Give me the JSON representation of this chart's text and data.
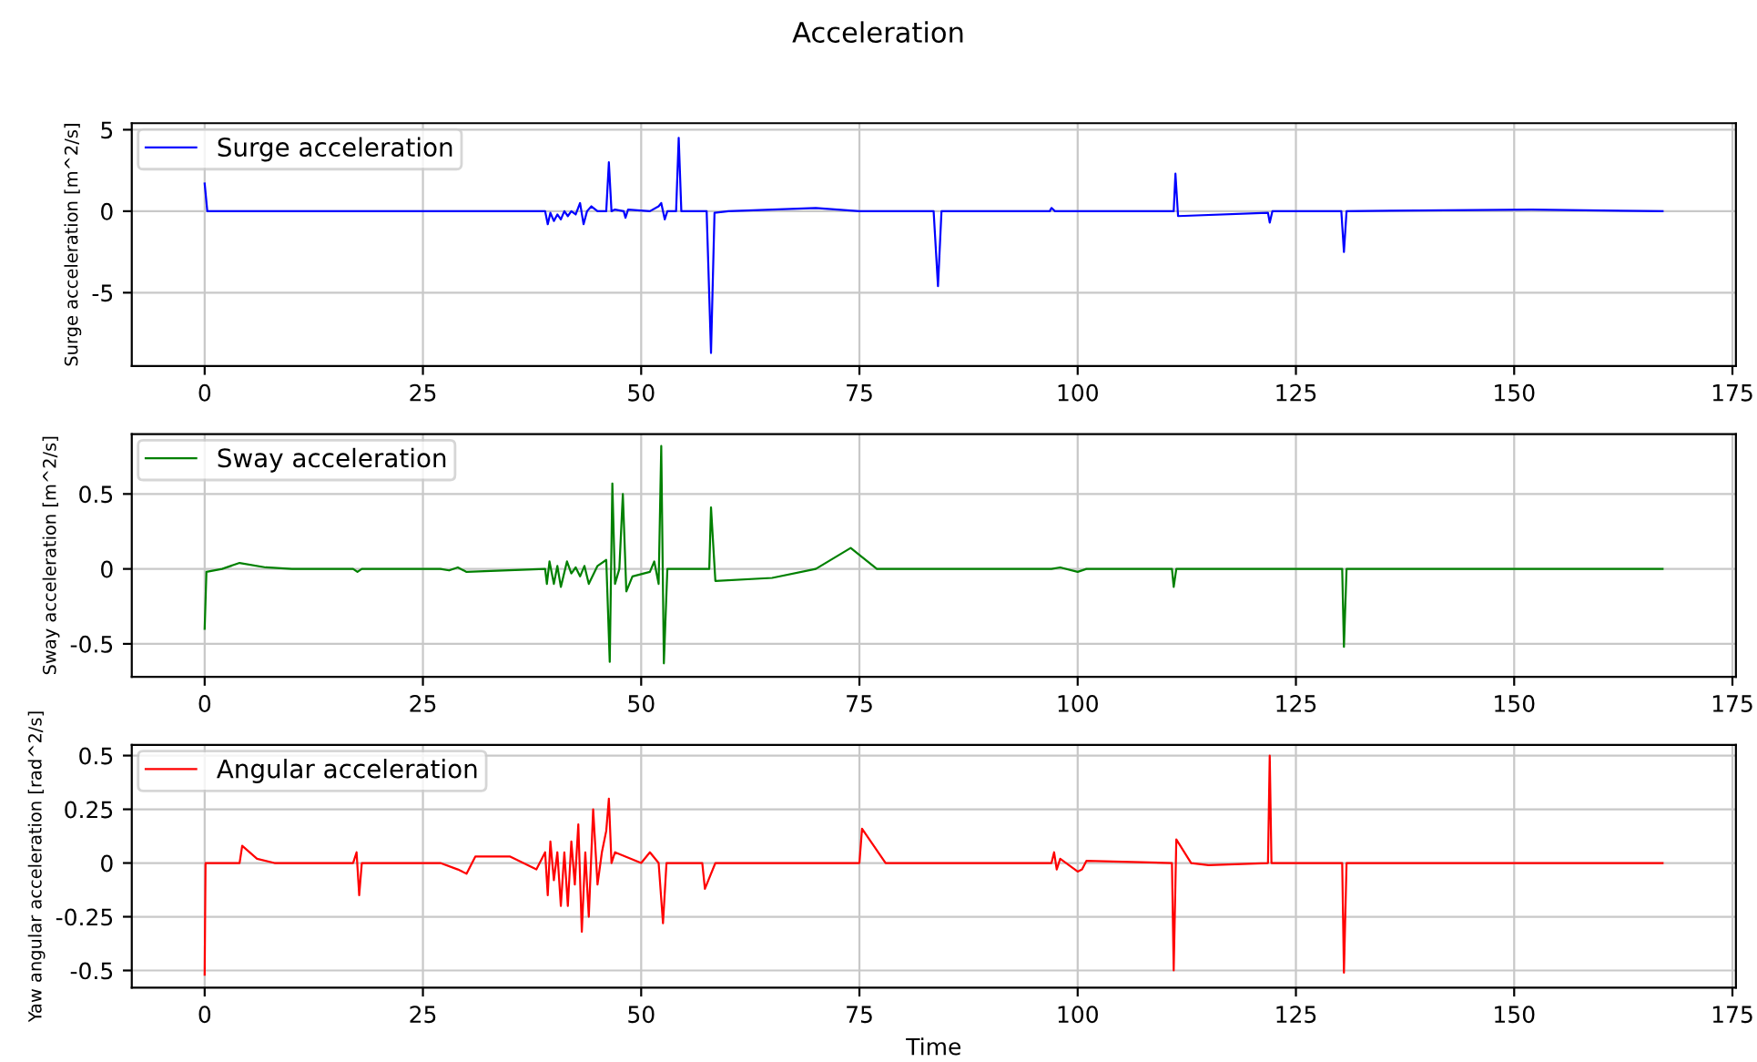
{
  "chart_data": [
    {
      "type": "line",
      "title": "Acceleration",
      "ylabel": "Surge acceleration [m^2/s]",
      "xlim": [
        -8.35,
        175.4
      ],
      "xticks": [
        0,
        25,
        50,
        75,
        100,
        125,
        150,
        175
      ],
      "ylim": [
        -9.5,
        5.4
      ],
      "yticks": [
        -5,
        0,
        5
      ],
      "grid": true,
      "legend": "top left",
      "series": [
        {
          "name": "Surge acceleration",
          "color": "#0000ff",
          "x": [
            0,
            0.3,
            39,
            39.3,
            39.6,
            40,
            40.4,
            40.8,
            41.2,
            41.6,
            42,
            42.5,
            43,
            43.4,
            43.8,
            44.3,
            45,
            46,
            46.3,
            46.6,
            47,
            48,
            48.2,
            48.5,
            51,
            52,
            52.3,
            52.7,
            53,
            54,
            54.3,
            54.6,
            57.5,
            58,
            58.4,
            60,
            65,
            70,
            75,
            83.5,
            84,
            84.4,
            96.8,
            97,
            97.4,
            111,
            111.2,
            111.5,
            121.8,
            122,
            122.3,
            130.2,
            130.5,
            130.8,
            152,
            167
          ],
          "values": [
            1.7,
            0,
            0,
            -0.8,
            -0.1,
            -0.6,
            -0.2,
            -0.5,
            0,
            -0.3,
            0,
            -0.2,
            0.5,
            -0.8,
            0,
            0.3,
            0,
            0,
            3.0,
            0,
            0.1,
            0,
            -0.4,
            0.1,
            0,
            0.3,
            0.5,
            -0.5,
            0,
            0,
            4.5,
            0,
            0,
            -8.7,
            -0.1,
            0,
            0.1,
            0.2,
            0,
            0,
            -4.6,
            0,
            0,
            0.2,
            0,
            0,
            2.3,
            -0.3,
            -0.1,
            -0.7,
            0,
            0,
            -2.5,
            0,
            0.1,
            0
          ]
        }
      ]
    },
    {
      "type": "line",
      "ylabel": "Sway acceleration [m^2/s]",
      "xlim": [
        -8.35,
        175.4
      ],
      "xticks": [
        0,
        25,
        50,
        75,
        100,
        125,
        150,
        175
      ],
      "ylim": [
        -0.72,
        0.9
      ],
      "yticks": [
        -0.5,
        0,
        0.5
      ],
      "grid": true,
      "legend": "top left",
      "series": [
        {
          "name": "Sway acceleration",
          "color": "#008000",
          "x": [
            0,
            0.2,
            2,
            4,
            7,
            10,
            17,
            17.5,
            18,
            27,
            28,
            29,
            30,
            39,
            39.2,
            39.5,
            40,
            40.4,
            40.8,
            41.5,
            42,
            42.5,
            43,
            43.5,
            44,
            45,
            46,
            46.4,
            46.7,
            47,
            47.5,
            47.9,
            48.3,
            49,
            51,
            51.5,
            52,
            52.3,
            52.6,
            53,
            57.8,
            58,
            58.5,
            65,
            70,
            74,
            77,
            80,
            97,
            98,
            100,
            101,
            110.8,
            111,
            111.3,
            130.3,
            130.5,
            130.8,
            167
          ],
          "values": [
            -0.4,
            -0.02,
            0,
            0.04,
            0.01,
            0,
            0,
            -0.02,
            0,
            0,
            -0.01,
            0.01,
            -0.02,
            0,
            -0.1,
            0.05,
            -0.1,
            0.02,
            -0.12,
            0.05,
            -0.03,
            0.01,
            -0.05,
            0.02,
            -0.1,
            0.02,
            0.06,
            -0.62,
            0.57,
            -0.1,
            0,
            0.5,
            -0.15,
            -0.05,
            -0.02,
            0.05,
            -0.1,
            0.82,
            -0.63,
            0,
            0,
            0.41,
            -0.08,
            -0.06,
            0,
            0.14,
            0,
            0,
            0,
            0.01,
            -0.02,
            0,
            0,
            -0.12,
            0,
            0,
            -0.52,
            0,
            0
          ]
        }
      ]
    },
    {
      "type": "line",
      "ylabel": "Yaw angular acceleration [rad^2/s]",
      "xlabel": "Time",
      "xlim": [
        -8.35,
        175.4
      ],
      "xticks": [
        0,
        25,
        50,
        75,
        100,
        125,
        150,
        175
      ],
      "ylim": [
        -0.58,
        0.55
      ],
      "yticks": [
        -0.5,
        -0.25,
        0,
        0.25,
        0.5
      ],
      "grid": true,
      "legend": "top left",
      "series": [
        {
          "name": "Angular acceleration",
          "color": "#ff0000",
          "x": [
            0,
            0.1,
            4,
            4.3,
            6,
            8,
            17,
            17.4,
            17.7,
            18,
            27,
            29,
            30,
            31,
            35,
            38,
            39,
            39.3,
            39.6,
            40,
            40.4,
            40.8,
            41.2,
            41.6,
            42,
            42.4,
            42.8,
            43.2,
            43.6,
            44,
            44.5,
            45,
            45.5,
            46,
            46.3,
            46.6,
            47,
            50,
            51,
            52,
            52.5,
            52.9,
            57,
            57.3,
            58.5,
            75,
            75.3,
            78,
            84,
            97,
            97.3,
            97.6,
            98,
            100,
            100.5,
            101,
            110.8,
            111,
            111.3,
            113,
            115,
            121.8,
            122,
            122.2,
            130.3,
            130.5,
            130.8,
            167
          ],
          "values": [
            -0.52,
            0,
            0,
            0.08,
            0.02,
            0,
            0,
            0.05,
            -0.15,
            0,
            0,
            -0.03,
            -0.05,
            0.03,
            0.03,
            -0.03,
            0.05,
            -0.15,
            0.1,
            -0.08,
            0.05,
            -0.2,
            0.05,
            -0.2,
            0.1,
            -0.1,
            0.18,
            -0.32,
            0.05,
            -0.25,
            0.25,
            -0.1,
            0.05,
            0.15,
            0.3,
            0,
            0.05,
            0,
            0.05,
            0,
            -0.28,
            0,
            0,
            -0.12,
            0,
            0,
            0.16,
            0,
            0,
            0,
            0.05,
            -0.03,
            0.02,
            -0.04,
            -0.03,
            0.01,
            0,
            -0.5,
            0.11,
            0,
            -0.01,
            0,
            0.5,
            0,
            0,
            -0.51,
            0,
            0
          ]
        }
      ]
    }
  ]
}
